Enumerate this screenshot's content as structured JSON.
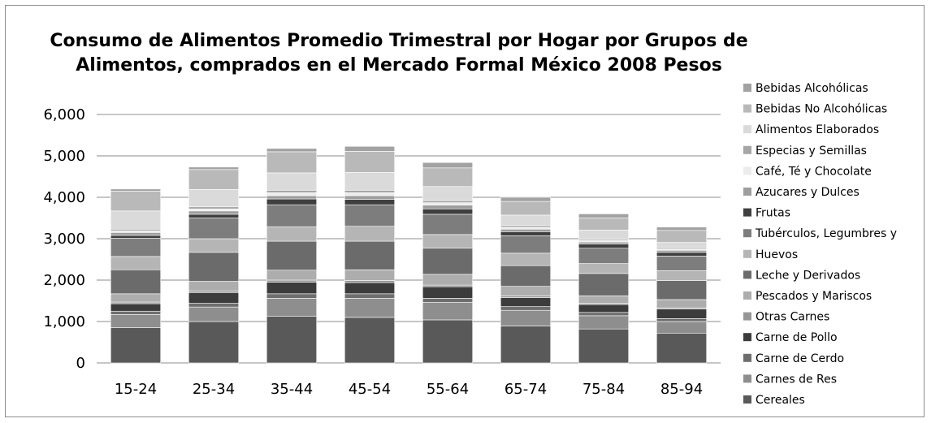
{
  "chart_data": {
    "type": "bar",
    "stacked": true,
    "title": "Consumo de Alimentos Promedio Trimestral por Hogar por Grupos de Alimentos, comprados en el Mercado Formal México 2008 Pesos",
    "title_lines": [
      "Consumo de Alimentos Promedio Trimestral por Hogar por Grupos de",
      "Alimentos, comprados en el Mercado Formal México 2008 Pesos"
    ],
    "xlabel": "",
    "ylabel": "",
    "ylim": [
      0,
      6000
    ],
    "yticks": [
      "0",
      "1,000",
      "2,000",
      "3,000",
      "4,000",
      "5,000",
      "6,000"
    ],
    "grid": true,
    "legend_position": "right",
    "categories": [
      "15-24",
      "25-34",
      "35-44",
      "45-54",
      "55-64",
      "65-74",
      "75-84",
      "85-94"
    ],
    "series": [
      {
        "name": "Cereales",
        "color": "#595959",
        "values": [
          850,
          1000,
          1130,
          1100,
          1040,
          890,
          820,
          720
        ]
      },
      {
        "name": "Carnes de Res",
        "color": "#8e8e8e",
        "values": [
          320,
          350,
          430,
          460,
          420,
          380,
          320,
          280
        ]
      },
      {
        "name": "Carne de Cerdo",
        "color": "#6e6e6e",
        "values": [
          80,
          90,
          110,
          110,
          100,
          90,
          80,
          70
        ]
      },
      {
        "name": "Carne de Pollo",
        "color": "#3c3c3c",
        "values": [
          180,
          260,
          280,
          270,
          280,
          220,
          190,
          230
        ]
      },
      {
        "name": "Otras Carnes",
        "color": "#969696",
        "values": [
          40,
          40,
          50,
          50,
          40,
          40,
          30,
          30
        ]
      },
      {
        "name": "Pescados y Mariscos",
        "color": "#adadad",
        "values": [
          200,
          230,
          240,
          260,
          260,
          230,
          180,
          200
        ]
      },
      {
        "name": "Leche y Derivados",
        "color": "#6b6b6b",
        "values": [
          580,
          700,
          700,
          690,
          630,
          500,
          540,
          460
        ]
      },
      {
        "name": "Huevos",
        "color": "#b5b5b5",
        "values": [
          320,
          330,
          350,
          360,
          330,
          300,
          240,
          240
        ]
      },
      {
        "name": "Tubérculos, Legumbres y",
        "color": "#7d7d7d",
        "values": [
          440,
          500,
          530,
          520,
          490,
          420,
          370,
          350
        ]
      },
      {
        "name": "Frutas",
        "color": "#3f3f3f",
        "values": [
          70,
          90,
          140,
          130,
          130,
          100,
          100,
          90
        ]
      },
      {
        "name": "Azucares y Dulces",
        "color": "#9e9e9e",
        "values": [
          70,
          80,
          80,
          90,
          90,
          60,
          50,
          50
        ]
      },
      {
        "name": "Café, Té y Chocolate",
        "color": "#ececec",
        "values": [
          40,
          50,
          70,
          70,
          60,
          50,
          40,
          40
        ]
      },
      {
        "name": "Especias y Semillas",
        "color": "#a6a6a6",
        "values": [
          40,
          50,
          60,
          60,
          50,
          40,
          30,
          30
        ]
      },
      {
        "name": "Alimentos Elaborados",
        "color": "#dadada",
        "values": [
          440,
          420,
          420,
          430,
          340,
          250,
          220,
          120
        ]
      },
      {
        "name": "Bebidas No Alcohólicas",
        "color": "#b9b9b9",
        "values": [
          480,
          480,
          510,
          510,
          450,
          330,
          290,
          290
        ]
      },
      {
        "name": "Bebidas Alcohólicas",
        "color": "#a2a2a2",
        "values": [
          50,
          60,
          80,
          120,
          130,
          100,
          100,
          80
        ]
      }
    ]
  }
}
